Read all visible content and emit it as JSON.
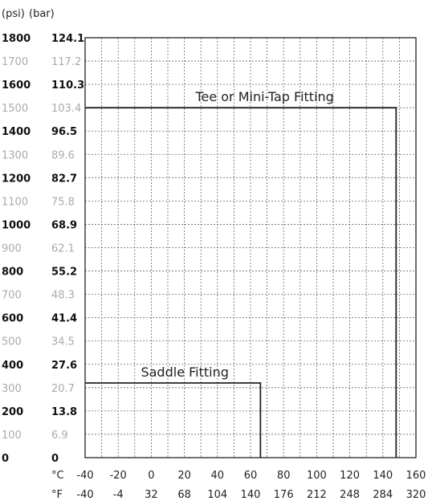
{
  "chart_data": {
    "type": "line",
    "y_units": [
      "(psi)",
      "(bar)"
    ],
    "x_units": [
      "°C",
      "°F"
    ],
    "y_ticks": [
      {
        "psi": "0",
        "bar": "0",
        "major": true
      },
      {
        "psi": "100",
        "bar": "6.9",
        "major": false
      },
      {
        "psi": "200",
        "bar": "13.8",
        "major": true
      },
      {
        "psi": "300",
        "bar": "20.7",
        "major": false
      },
      {
        "psi": "400",
        "bar": "27.6",
        "major": true
      },
      {
        "psi": "500",
        "bar": "34.5",
        "major": false
      },
      {
        "psi": "600",
        "bar": "41.4",
        "major": true
      },
      {
        "psi": "700",
        "bar": "48.3",
        "major": false
      },
      {
        "psi": "800",
        "bar": "55.2",
        "major": true
      },
      {
        "psi": "900",
        "bar": "62.1",
        "major": false
      },
      {
        "psi": "1000",
        "bar": "68.9",
        "major": true
      },
      {
        "psi": "1100",
        "bar": "75.8",
        "major": false
      },
      {
        "psi": "1200",
        "bar": "82.7",
        "major": true
      },
      {
        "psi": "1300",
        "bar": "89.6",
        "major": false
      },
      {
        "psi": "1400",
        "bar": "96.5",
        "major": true
      },
      {
        "psi": "1500",
        "bar": "103.4",
        "major": false
      },
      {
        "psi": "1600",
        "bar": "110.3",
        "major": true
      },
      {
        "psi": "1700",
        "bar": "117.2",
        "major": false
      },
      {
        "psi": "1800",
        "bar": "124.1",
        "major": true
      }
    ],
    "x_ticks_c": [
      "-40",
      "-20",
      "0",
      "20",
      "40",
      "60",
      "80",
      "100",
      "120",
      "140",
      "160"
    ],
    "x_ticks_f": [
      "-40",
      "-4",
      "32",
      "68",
      "104",
      "140",
      "176",
      "212",
      "248",
      "284",
      "320"
    ],
    "xlim_c": [
      -40,
      160
    ],
    "ylim_psi": [
      0,
      1800
    ],
    "grid": true,
    "series": [
      {
        "name": "Tee or Mini-Tap Fitting",
        "max_pressure_psi": 1500,
        "max_temp_c": 148
      },
      {
        "name": "Saddle Fitting",
        "max_pressure_psi": 320,
        "max_temp_c": 66
      }
    ]
  }
}
